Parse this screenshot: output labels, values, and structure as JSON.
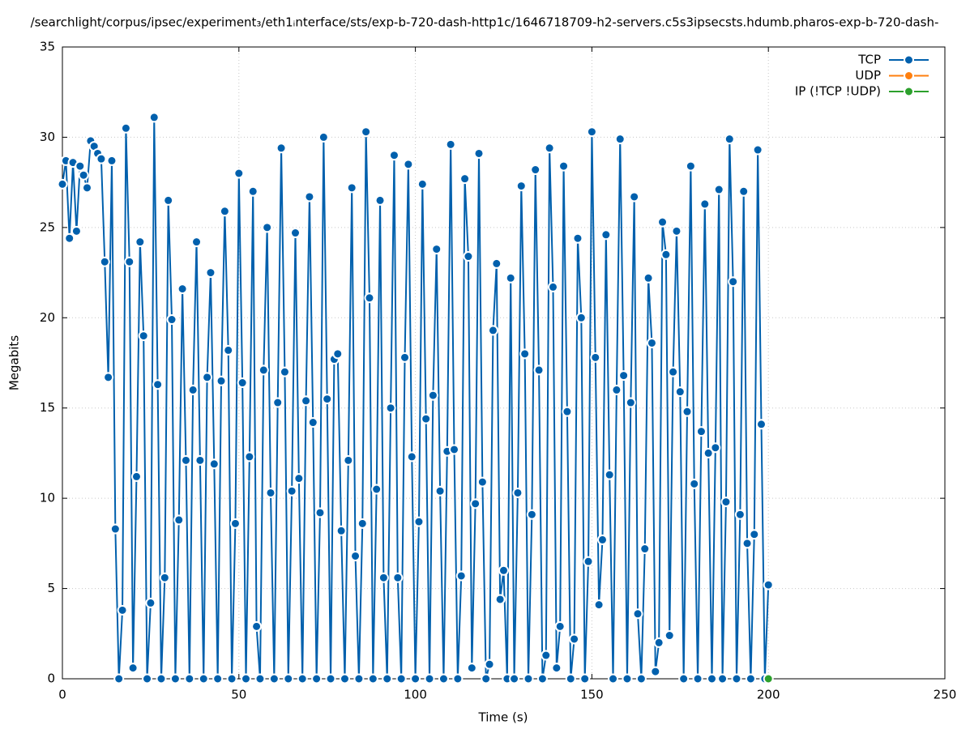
{
  "chart_data": {
    "type": "line",
    "title": "/searchlight/corpus/ipsec/experiment₃/eth1ᵢnterface/sts/exp-b-720-dash-http1c/1646718709-h2-servers.c5s3ipsecsts.hdumb.pharos-exp-b-720-dash-",
    "x_label": "Time (s)",
    "y_label": "Megabits",
    "xlim": [
      0,
      250
    ],
    "xticks": [
      0,
      50,
      100,
      150,
      200,
      250
    ],
    "ylim": [
      0,
      35
    ],
    "yticks": [
      0,
      5,
      10,
      15,
      20,
      25,
      30,
      35
    ],
    "grid": true,
    "legend": "top-right",
    "series": [
      {
        "name": "TCP",
        "color": "#0060ad",
        "x": [
          0,
          1,
          2,
          3,
          4,
          5,
          6,
          7,
          8,
          9,
          10,
          11,
          12,
          13,
          14,
          15,
          16,
          17,
          18,
          19,
          20,
          21,
          22,
          23,
          24,
          25,
          26,
          27,
          28,
          29,
          30,
          31,
          32,
          33,
          34,
          35,
          36,
          37,
          38,
          39,
          40,
          41,
          42,
          43,
          44,
          45,
          46,
          47,
          48,
          49,
          50,
          51,
          52,
          53,
          54,
          55,
          56,
          57,
          58,
          59,
          60,
          61,
          62,
          63,
          64,
          65,
          66,
          67,
          68,
          69,
          70,
          71,
          72,
          73,
          74,
          75,
          76,
          77,
          78,
          79,
          80,
          81,
          82,
          83,
          84,
          85,
          86,
          87,
          88,
          89,
          90,
          91,
          92,
          93,
          94,
          95,
          96,
          97,
          98,
          99,
          100,
          101,
          102,
          103,
          104,
          105,
          106,
          107,
          108,
          109,
          110,
          111,
          112,
          113,
          114,
          115,
          116,
          117,
          118,
          119,
          120,
          121,
          122,
          123,
          124,
          125,
          126,
          127,
          128,
          129,
          130,
          131,
          132,
          133,
          134,
          135,
          136,
          137,
          138,
          139,
          140,
          141,
          142,
          143,
          144,
          145,
          146,
          147,
          148,
          149,
          150,
          151,
          152,
          153,
          154,
          155,
          156,
          157,
          158,
          159,
          160,
          161,
          162,
          163,
          164,
          165,
          166,
          167,
          168,
          169,
          170,
          171,
          172,
          173,
          174,
          175,
          176,
          177,
          178,
          179,
          180,
          181,
          182,
          183,
          184,
          185,
          186,
          187,
          188,
          189,
          190,
          191,
          192,
          193,
          194,
          195,
          196,
          197,
          198,
          199,
          200
        ],
        "values": [
          27.4,
          28.7,
          24.4,
          28.6,
          24.8,
          28.4,
          27.9,
          27.2,
          29.8,
          29.5,
          29.1,
          28.8,
          23.1,
          16.7,
          28.7,
          8.3,
          0,
          3.8,
          30.5,
          23.1,
          0.6,
          11.2,
          24.2,
          19.0,
          0,
          4.2,
          31.1,
          16.3,
          0,
          5.6,
          26.5,
          19.9,
          0,
          8.8,
          21.6,
          12.1,
          0,
          16.0,
          24.2,
          12.1,
          0,
          16.7,
          22.5,
          11.9,
          0,
          16.5,
          25.9,
          18.2,
          0,
          8.6,
          28.0,
          16.4,
          0,
          12.3,
          27.0,
          2.9,
          0,
          17.1,
          25.0,
          10.3,
          0,
          15.3,
          29.4,
          17.0,
          0,
          10.4,
          24.7,
          11.1,
          0,
          15.4,
          26.7,
          14.2,
          0,
          9.2,
          30.0,
          15.5,
          0,
          17.7,
          18.0,
          8.2,
          0,
          12.1,
          27.2,
          6.8,
          0,
          8.6,
          30.3,
          21.1,
          0,
          10.5,
          26.5,
          5.6,
          0,
          15.0,
          29.0,
          5.6,
          0,
          17.8,
          28.5,
          12.3,
          0,
          8.7,
          27.4,
          14.4,
          0,
          15.7,
          23.8,
          10.4,
          0,
          12.6,
          29.6,
          12.7,
          0,
          5.7,
          27.7,
          23.4,
          0.6,
          9.7,
          29.1,
          10.9,
          0,
          0.8,
          19.3,
          23.0,
          4.4,
          6.0,
          0,
          22.2,
          0,
          10.3,
          27.3,
          18.0,
          0,
          9.1,
          28.2,
          17.1,
          0,
          1.3,
          29.4,
          21.7,
          0.6,
          2.9,
          28.4,
          14.8,
          0,
          2.2,
          24.4,
          20.0,
          0,
          6.5,
          30.3,
          17.8,
          4.1,
          7.7,
          24.6,
          11.3,
          0,
          16.0,
          29.9,
          16.8,
          0,
          15.3,
          26.7,
          3.6,
          0,
          7.2,
          22.2,
          18.6,
          0.4,
          2.0,
          25.3,
          23.5,
          2.4,
          17.0,
          24.8,
          15.9,
          0,
          14.8,
          28.4,
          10.8,
          0,
          13.7,
          26.3,
          12.5,
          0,
          12.8,
          27.1,
          0,
          9.8,
          29.9,
          22.0,
          0,
          9.1,
          27.0,
          7.5,
          0,
          8.0,
          29.3,
          14.1,
          0,
          5.2
        ]
      },
      {
        "name": "UDP",
        "color": "#ff7f0e",
        "x": [],
        "values": []
      },
      {
        "name": "IP (!TCP  !UDP)",
        "color": "#2ca02c",
        "x": [
          200
        ],
        "values": [
          0
        ]
      }
    ]
  }
}
